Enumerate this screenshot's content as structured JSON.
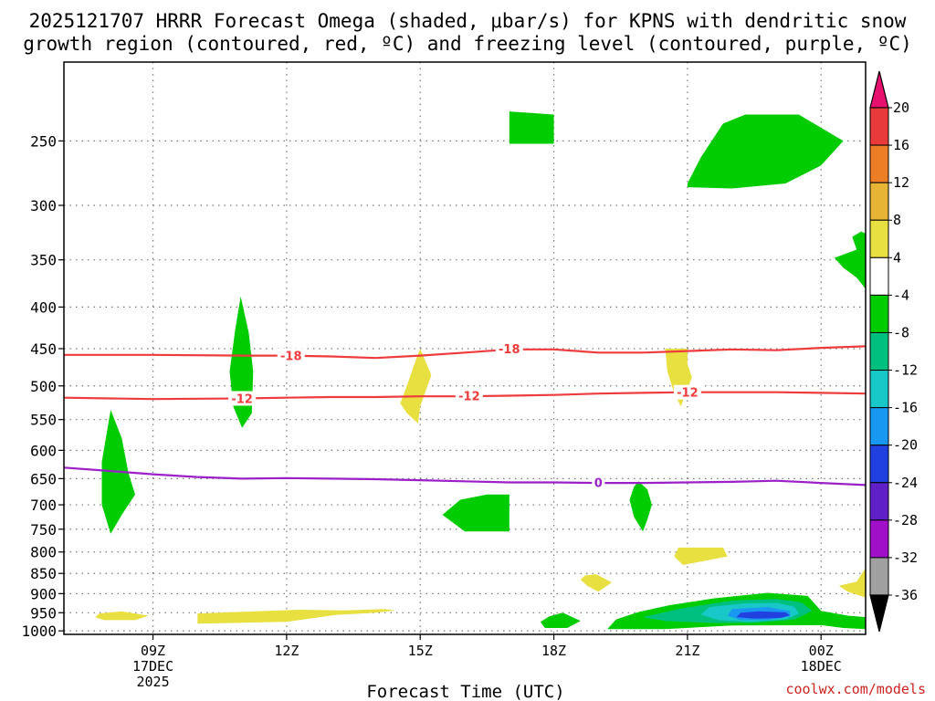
{
  "chart_data": {
    "type": "heatmap",
    "title_line1": "2025121707 HRRR Forecast Omega (shaded, μbar/s) for KPNS with dendritic snow",
    "title_line2": "growth region (contoured, red, ºC) and freezing level (contoured, purple, ºC)",
    "xlabel": "Forecast Time (UTC)",
    "credit": "coolwx.com/models",
    "xlim": [
      7,
      25
    ],
    "ylim": [
      1010,
      200
    ],
    "y_ticks": [
      250,
      300,
      350,
      400,
      450,
      500,
      550,
      600,
      650,
      700,
      750,
      800,
      850,
      900,
      950,
      1000
    ],
    "x_ticks": [
      {
        "hour": 9,
        "lines": [
          "09Z",
          "17DEC",
          "2025"
        ]
      },
      {
        "hour": 12,
        "lines": [
          "12Z"
        ]
      },
      {
        "hour": 15,
        "lines": [
          "15Z"
        ]
      },
      {
        "hour": 18,
        "lines": [
          "18Z"
        ]
      },
      {
        "hour": 21,
        "lines": [
          "21Z"
        ]
      },
      {
        "hour": 24,
        "lines": [
          "00Z",
          "18DEC"
        ]
      }
    ],
    "colorbar": {
      "labels": [
        "20",
        "16",
        "12",
        "8",
        "4",
        "-4",
        "-8",
        "-12",
        "-16",
        "-20",
        "-24",
        "-28",
        "-32",
        "-36"
      ],
      "colors": [
        "#e8106e",
        "#e83a3a",
        "#ee7e26",
        "#e8b436",
        "#e8e040",
        "#ffffff",
        "#00cc00",
        "#00c080",
        "#18c8c8",
        "#1898f0",
        "#2040e0",
        "#6020c8",
        "#a010c8",
        "#a0a0a0",
        "#000000"
      ]
    },
    "omega_regions": [
      {
        "class": "-8",
        "color": "#00cc00",
        "points": [
          [
            17.0,
            230
          ],
          [
            18.0,
            232
          ],
          [
            18.0,
            252
          ],
          [
            17.0,
            252
          ]
        ]
      },
      {
        "class": "-8",
        "color": "#00cc00",
        "points": [
          [
            21.0,
            282
          ],
          [
            21.3,
            262
          ],
          [
            21.8,
            238
          ],
          [
            22.3,
            232
          ],
          [
            23.5,
            232
          ],
          [
            24.5,
            250
          ],
          [
            24.0,
            268
          ],
          [
            23.2,
            282
          ],
          [
            22.0,
            286
          ],
          [
            21.0,
            285
          ]
        ]
      },
      {
        "class": "-8",
        "color": "#00cc00",
        "points": [
          [
            24.7,
            328
          ],
          [
            24.9,
            323
          ],
          [
            25.0,
            325
          ],
          [
            25.0,
            380
          ],
          [
            24.8,
            368
          ],
          [
            24.5,
            358
          ],
          [
            24.3,
            348
          ],
          [
            24.8,
            340
          ]
        ]
      },
      {
        "class": "-8",
        "color": "#00cc00",
        "points": [
          [
            10.97,
            388
          ],
          [
            11.15,
            430
          ],
          [
            11.25,
            480
          ],
          [
            11.22,
            540
          ],
          [
            11.0,
            563
          ],
          [
            10.8,
            530
          ],
          [
            10.72,
            480
          ],
          [
            10.85,
            425
          ]
        ]
      },
      {
        "class": "-8",
        "color": "#00cc00",
        "points": [
          [
            8.05,
            535
          ],
          [
            8.3,
            580
          ],
          [
            8.45,
            640
          ],
          [
            8.6,
            680
          ],
          [
            8.3,
            720
          ],
          [
            8.05,
            760
          ],
          [
            7.85,
            700
          ],
          [
            7.85,
            620
          ]
        ]
      },
      {
        "class": "-8",
        "color": "#00cc00",
        "points": [
          [
            16.5,
            680
          ],
          [
            17.0,
            680
          ],
          [
            17.0,
            755
          ],
          [
            16.0,
            755
          ],
          [
            15.5,
            720
          ],
          [
            15.9,
            690
          ]
        ]
      },
      {
        "class": "-8",
        "color": "#00cc00",
        "points": [
          [
            19.9,
            655
          ],
          [
            20.1,
            670
          ],
          [
            20.2,
            700
          ],
          [
            20.1,
            730
          ],
          [
            20.0,
            755
          ],
          [
            19.8,
            725
          ],
          [
            19.7,
            690
          ],
          [
            19.8,
            665
          ]
        ]
      },
      {
        "class": "-8",
        "color": "#00cc00",
        "points": [
          [
            17.9,
            960
          ],
          [
            18.2,
            950
          ],
          [
            18.6,
            972
          ],
          [
            18.3,
            992
          ],
          [
            17.8,
            992
          ],
          [
            17.7,
            975
          ]
        ]
      },
      {
        "class": "-8",
        "color": "#00cc00",
        "points": [
          [
            19.2,
            995
          ],
          [
            19.4,
            968
          ],
          [
            19.9,
            948
          ],
          [
            20.6,
            930
          ],
          [
            21.6,
            912
          ],
          [
            22.8,
            898
          ],
          [
            23.7,
            906
          ],
          [
            24.0,
            945
          ],
          [
            24.6,
            958
          ],
          [
            25.0,
            962
          ],
          [
            25.0,
            995
          ],
          [
            24.5,
            992
          ],
          [
            24.0,
            984
          ],
          [
            22.0,
            985
          ],
          [
            20.5,
            995
          ]
        ]
      },
      {
        "class": "-12",
        "color": "#00c080",
        "points": [
          [
            20.0,
            962
          ],
          [
            20.8,
            940
          ],
          [
            22.0,
            918
          ],
          [
            23.0,
            914
          ],
          [
            23.55,
            922
          ],
          [
            23.8,
            945
          ],
          [
            23.4,
            968
          ],
          [
            22.5,
            978
          ],
          [
            21.5,
            978
          ],
          [
            20.5,
            972
          ]
        ]
      },
      {
        "class": "-16",
        "color": "#18c8c8",
        "points": [
          [
            21.5,
            935
          ],
          [
            22.3,
            925
          ],
          [
            23.0,
            924
          ],
          [
            23.4,
            934
          ],
          [
            23.5,
            952
          ],
          [
            23.2,
            968
          ],
          [
            22.4,
            975
          ],
          [
            21.7,
            970
          ],
          [
            21.3,
            955
          ]
        ]
      },
      {
        "class": "-20",
        "color": "#1898f0",
        "points": [
          [
            22.0,
            940
          ],
          [
            22.8,
            935
          ],
          [
            23.3,
            945
          ],
          [
            23.3,
            960
          ],
          [
            22.8,
            970
          ],
          [
            22.2,
            970
          ],
          [
            21.9,
            958
          ]
        ]
      },
      {
        "class": "-24",
        "color": "#2040e0",
        "points": [
          [
            22.2,
            950
          ],
          [
            22.6,
            946
          ],
          [
            23.2,
            949
          ],
          [
            23.3,
            957
          ],
          [
            23.1,
            964
          ],
          [
            22.5,
            966
          ],
          [
            22.1,
            962
          ]
        ]
      },
      {
        "class": "4",
        "color": "#e8e040",
        "points": [
          [
            15.0,
            450
          ],
          [
            15.25,
            485
          ],
          [
            15.0,
            530
          ],
          [
            14.95,
            556
          ],
          [
            14.7,
            540
          ],
          [
            14.55,
            525
          ],
          [
            14.7,
            500
          ],
          [
            14.9,
            465
          ]
        ]
      },
      {
        "class": "4",
        "color": "#e8e040",
        "points": [
          [
            20.5,
            450
          ],
          [
            21.0,
            450
          ],
          [
            21.0,
            470
          ],
          [
            21.1,
            488
          ],
          [
            21.0,
            505
          ],
          [
            20.85,
            530
          ],
          [
            20.7,
            510
          ],
          [
            20.55,
            480
          ]
        ]
      },
      {
        "class": "4",
        "color": "#e8e040",
        "points": [
          [
            20.8,
            790
          ],
          [
            21.8,
            790
          ],
          [
            21.9,
            810
          ],
          [
            21.5,
            818
          ],
          [
            20.9,
            830
          ],
          [
            20.7,
            810
          ]
        ]
      },
      {
        "class": "4",
        "color": "#e8e040",
        "points": [
          [
            18.7,
            855
          ],
          [
            18.95,
            852
          ],
          [
            19.3,
            872
          ],
          [
            19.0,
            895
          ],
          [
            18.75,
            880
          ],
          [
            18.6,
            865
          ]
        ]
      },
      {
        "class": "4",
        "color": "#e8e040",
        "points": [
          [
            24.8,
            870
          ],
          [
            25.0,
            837
          ],
          [
            25.0,
            910
          ],
          [
            24.6,
            895
          ],
          [
            24.4,
            880
          ]
        ]
      },
      {
        "class": "4",
        "color": "#e8e040",
        "points": [
          [
            7.8,
            952
          ],
          [
            8.3,
            946
          ],
          [
            8.9,
            958
          ],
          [
            8.6,
            970
          ],
          [
            7.9,
            970
          ],
          [
            7.7,
            962
          ]
        ]
      },
      {
        "class": "4",
        "color": "#e8e040",
        "points": [
          [
            10.0,
            952
          ],
          [
            11.3,
            946
          ],
          [
            12.3,
            942
          ],
          [
            13.3,
            944
          ],
          [
            14.2,
            940
          ],
          [
            14.45,
            944
          ],
          [
            14.0,
            950
          ],
          [
            13.1,
            956
          ],
          [
            12.0,
            975
          ],
          [
            10.0,
            980
          ]
        ]
      }
    ],
    "surface": {
      "color": "#a0522d",
      "top_pressure": 1010
    },
    "dgz_contours": [
      {
        "value": -18,
        "label": "-18",
        "color": "#ee3b3b",
        "points": [
          [
            7,
            458
          ],
          [
            9,
            458
          ],
          [
            11,
            459
          ],
          [
            12,
            459
          ],
          [
            13,
            460
          ],
          [
            14,
            462
          ],
          [
            15,
            459
          ],
          [
            16,
            455
          ],
          [
            17,
            451
          ],
          [
            18,
            451
          ],
          [
            19,
            455
          ],
          [
            20,
            455
          ],
          [
            21,
            453
          ],
          [
            22,
            451
          ],
          [
            23,
            452
          ],
          [
            24,
            449
          ],
          [
            25,
            447
          ]
        ],
        "label_positions": [
          [
            12.1,
            459
          ],
          [
            17.0,
            450
          ]
        ]
      },
      {
        "value": -12,
        "label": "-12",
        "color": "#ee3b3b",
        "points": [
          [
            7,
            517
          ],
          [
            9,
            519
          ],
          [
            11,
            518
          ],
          [
            12,
            517
          ],
          [
            13,
            516
          ],
          [
            14,
            516
          ],
          [
            15,
            515
          ],
          [
            16,
            515
          ],
          [
            17,
            514
          ],
          [
            18,
            513
          ],
          [
            19,
            511
          ],
          [
            20,
            510
          ],
          [
            21,
            509
          ],
          [
            22,
            509
          ],
          [
            23,
            509
          ],
          [
            24,
            510
          ],
          [
            25,
            511
          ]
        ],
        "label_positions": [
          [
            11.0,
            518
          ],
          [
            16.1,
            514
          ],
          [
            21.0,
            509
          ]
        ]
      }
    ],
    "freezing_contour": {
      "value": 0,
      "label": "0",
      "color": "#9b20c8",
      "points": [
        [
          7,
          630
        ],
        [
          8,
          636
        ],
        [
          9,
          642
        ],
        [
          10,
          647
        ],
        [
          11,
          650
        ],
        [
          12,
          649
        ],
        [
          13,
          650
        ],
        [
          14,
          651
        ],
        [
          15,
          653
        ],
        [
          16,
          655
        ],
        [
          17,
          657
        ],
        [
          18,
          657
        ],
        [
          19,
          658
        ],
        [
          20,
          658
        ],
        [
          21,
          657
        ],
        [
          22,
          656
        ],
        [
          23,
          654
        ],
        [
          24,
          658
        ],
        [
          25,
          662
        ]
      ],
      "label_positions": [
        [
          19.0,
          657
        ]
      ]
    }
  }
}
